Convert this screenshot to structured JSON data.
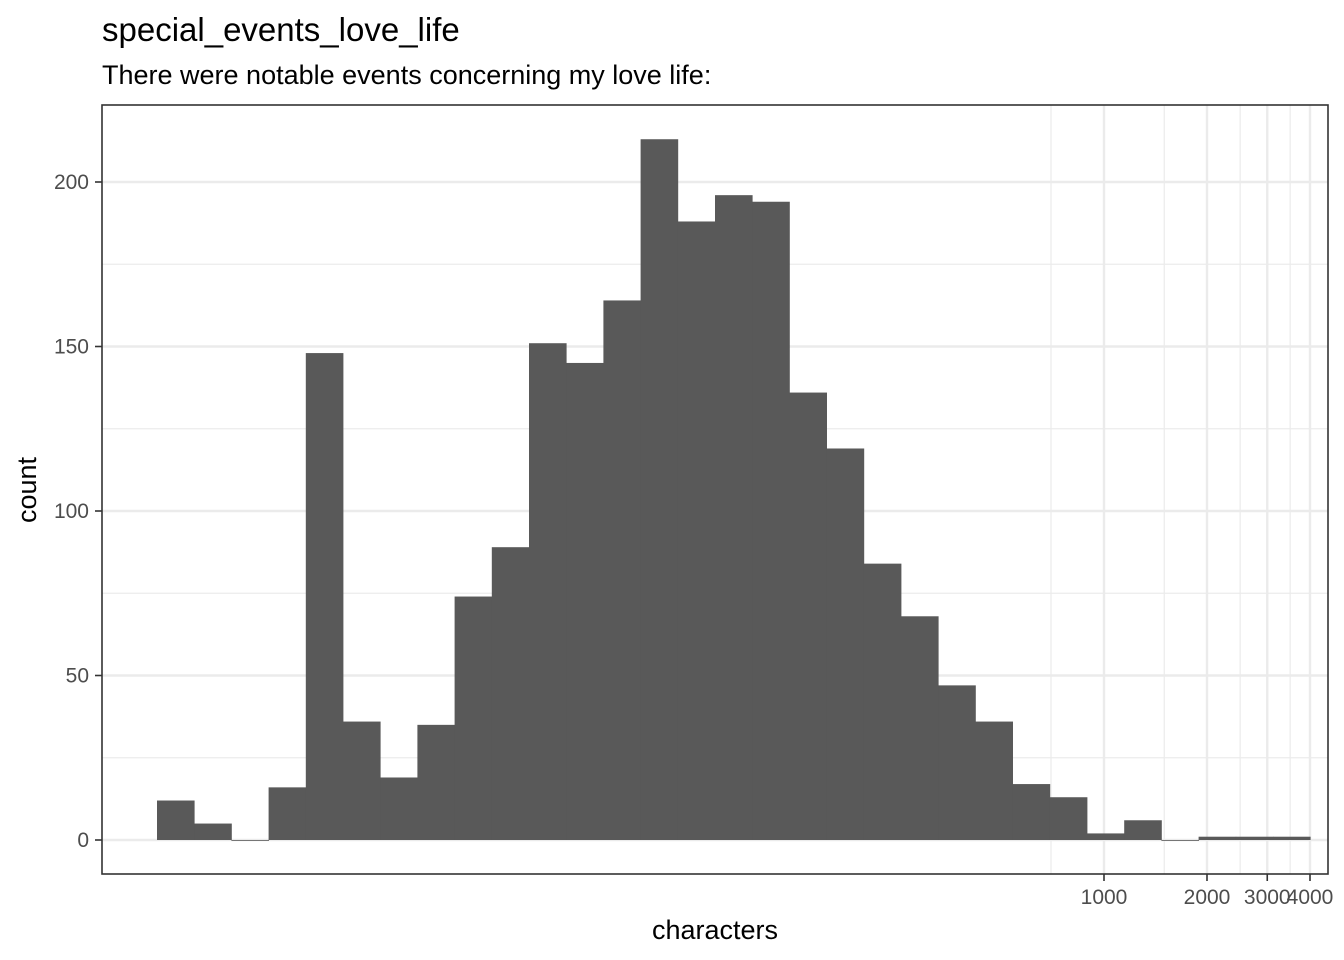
{
  "chart_data": {
    "type": "bar",
    "title": "special_events_love_life",
    "subtitle": "There were notable events concerning my love life:",
    "xlabel": "characters",
    "ylabel": "count",
    "x_scale": "log10",
    "xlim": [
      0.6,
      4700
    ],
    "ylim": [
      -10,
      222
    ],
    "x_ticks": [
      1000,
      2000,
      3000,
      4000
    ],
    "x_tick_labels": [
      "1000",
      "2000",
      "3000",
      "4000"
    ],
    "y_ticks": [
      0,
      50,
      100,
      150,
      200
    ],
    "y_tick_labels": [
      "0",
      "50",
      "100",
      "150",
      "200"
    ],
    "grid": true,
    "legend": "none",
    "bar_color": "#595959",
    "values": [
      12,
      5,
      0,
      16,
      148,
      36,
      19,
      35,
      74,
      89,
      151,
      145,
      164,
      213,
      188,
      196,
      194,
      136,
      119,
      84,
      68,
      47,
      36,
      17,
      13,
      2,
      6,
      0,
      1,
      1,
      1
    ]
  }
}
